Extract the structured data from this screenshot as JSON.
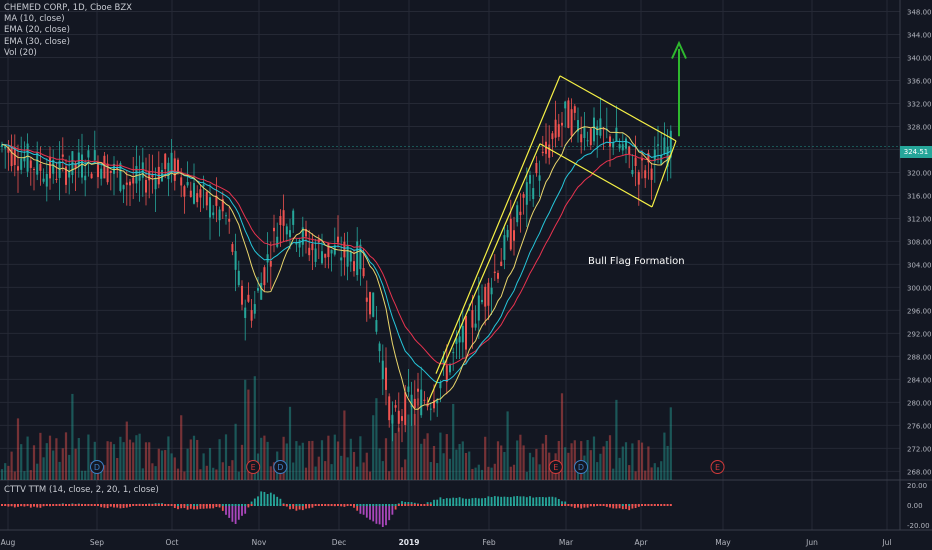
{
  "legend": {
    "symbol": "CHEMED CORP, 1D, Cboe BZX",
    "indicators": [
      "MA (10, close)",
      "EMA (20, close)",
      "EMA (30, close)",
      "Vol (20)"
    ]
  },
  "oscillator": {
    "label": "CTTV TTM (14, close, 2, 20, 1, close)"
  },
  "annotation": {
    "text": "Bull Flag Formation"
  },
  "price_tag": {
    "value": "324.51",
    "color": "#26a69a"
  },
  "event_markers": [
    {
      "letter": "D",
      "date": "Aug 31"
    },
    {
      "letter": "E",
      "date": "Oct 29"
    },
    {
      "letter": "D",
      "date": "Nov 9"
    },
    {
      "letter": "E",
      "date": "Feb 27"
    },
    {
      "letter": "D",
      "date": "Mar 7"
    },
    {
      "letter": "E",
      "date": "Apr 29"
    }
  ],
  "colors": {
    "background": "#131722",
    "grid": "#252935",
    "up": "#26a69a",
    "down": "#ef5350",
    "ma10": "#e9d56b",
    "ema20": "#26c6da",
    "ema30": "#e8334f",
    "pattern": "#f5f046",
    "arrow": "#2eb82e",
    "marker_d": "#3d7fc4",
    "marker_e": "#d03a3a"
  },
  "chart_data": {
    "type": "candlestick",
    "x_labels": [
      "Aug",
      "Sep",
      "Oct",
      "Nov",
      "Dec",
      "2019",
      "Feb",
      "Mar",
      "Apr",
      "May",
      "Jun",
      "Jul"
    ],
    "price_ticks": [
      268,
      272,
      276,
      280,
      284,
      288,
      292,
      296,
      300,
      304,
      308,
      312,
      316,
      320,
      324,
      328,
      332,
      336,
      340,
      344,
      348
    ],
    "price_range": [
      266.5,
      350
    ],
    "last_price": 324.51,
    "close_series": [
      {
        "date": "Aug 1",
        "close": 324
      },
      {
        "date": "Aug 15",
        "close": 320
      },
      {
        "date": "Sep 1",
        "close": 322
      },
      {
        "date": "Sep 15",
        "close": 318
      },
      {
        "date": "Oct 1",
        "close": 321
      },
      {
        "date": "Oct 10",
        "close": 316
      },
      {
        "date": "Oct 20",
        "close": 312
      },
      {
        "date": "Oct 25",
        "close": 298
      },
      {
        "date": "Oct 29",
        "close": 296
      },
      {
        "date": "Nov 5",
        "close": 306
      },
      {
        "date": "Nov 10",
        "close": 313
      },
      {
        "date": "Nov 20",
        "close": 307
      },
      {
        "date": "Dec 1",
        "close": 306
      },
      {
        "date": "Dec 10",
        "close": 305
      },
      {
        "date": "Dec 17",
        "close": 294
      },
      {
        "date": "Dec 24",
        "close": 276
      },
      {
        "date": "Jan 1",
        "close": 280
      },
      {
        "date": "Jan 10",
        "close": 281
      },
      {
        "date": "Jan 20",
        "close": 290
      },
      {
        "date": "Feb 1",
        "close": 300
      },
      {
        "date": "Feb 15",
        "close": 315
      },
      {
        "date": "Feb 25",
        "close": 325
      },
      {
        "date": "Mar 1",
        "close": 330
      },
      {
        "date": "Mar 10",
        "close": 327
      },
      {
        "date": "Mar 20",
        "close": 326
      },
      {
        "date": "Apr 1",
        "close": 320
      },
      {
        "date": "Apr 12",
        "close": 324.51
      }
    ],
    "oscillator": {
      "ticks": [
        "20.00",
        "0.00",
        "-20.00"
      ],
      "range": [
        -25,
        25
      ]
    }
  }
}
